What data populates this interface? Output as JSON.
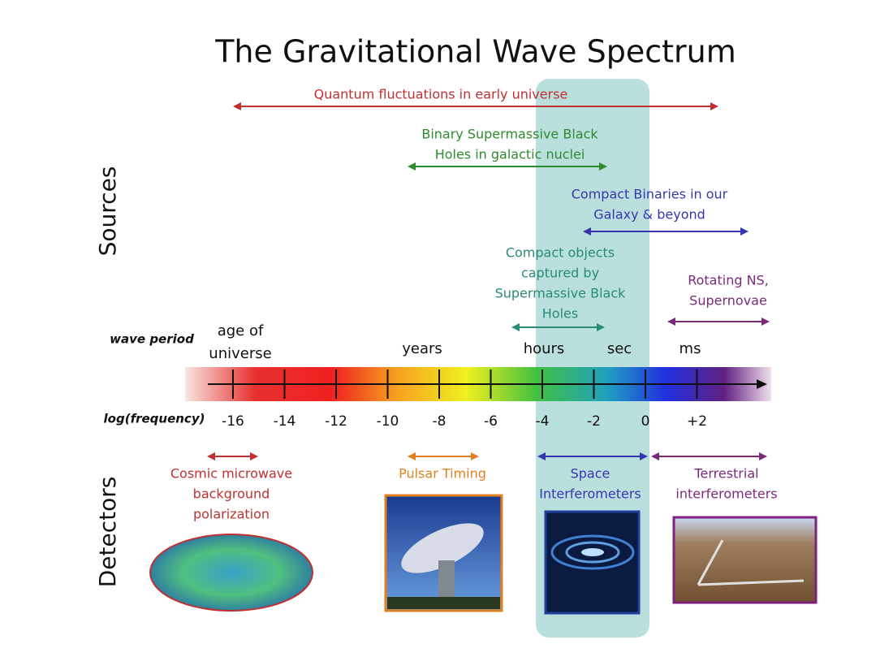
{
  "title": "The Gravitational Wave Spectrum",
  "sections": {
    "sources": "Sources",
    "detectors": "Detectors"
  },
  "sources": [
    {
      "lines": [
        "Quantum fluctuations in early universe"
      ]
    },
    {
      "lines": [
        "Binary Supermassive Black",
        "Holes in galactic nuclei"
      ]
    },
    {
      "lines": [
        "Compact Binaries in our",
        "Galaxy & beyond"
      ]
    },
    {
      "lines": [
        "Compact objects",
        "captured by",
        "Supermassive Black",
        "Holes"
      ]
    },
    {
      "lines": [
        "Rotating NS,",
        "Supernovae"
      ]
    }
  ],
  "axis": {
    "wave_period_label": "wave period",
    "periods": [
      {
        "lines": [
          "age of",
          "universe"
        ]
      },
      {
        "lines": [
          "years"
        ]
      },
      {
        "lines": [
          "hours"
        ]
      },
      {
        "lines": [
          "sec"
        ]
      },
      {
        "lines": [
          "ms"
        ]
      }
    ],
    "frequency_label": "log(frequency)",
    "ticks": [
      "-16",
      "-14",
      "-12",
      "-10",
      "-8",
      "-6",
      "-4",
      "-2",
      "0",
      "+2"
    ]
  },
  "detectors": [
    {
      "lines": [
        "Cosmic microwave",
        "background",
        "polarization"
      ]
    },
    {
      "lines": [
        "Pulsar Timing"
      ]
    },
    {
      "lines": [
        "Space",
        "Interferometers"
      ]
    },
    {
      "lines": [
        "Terrestrial",
        "interferometers"
      ]
    }
  ]
}
